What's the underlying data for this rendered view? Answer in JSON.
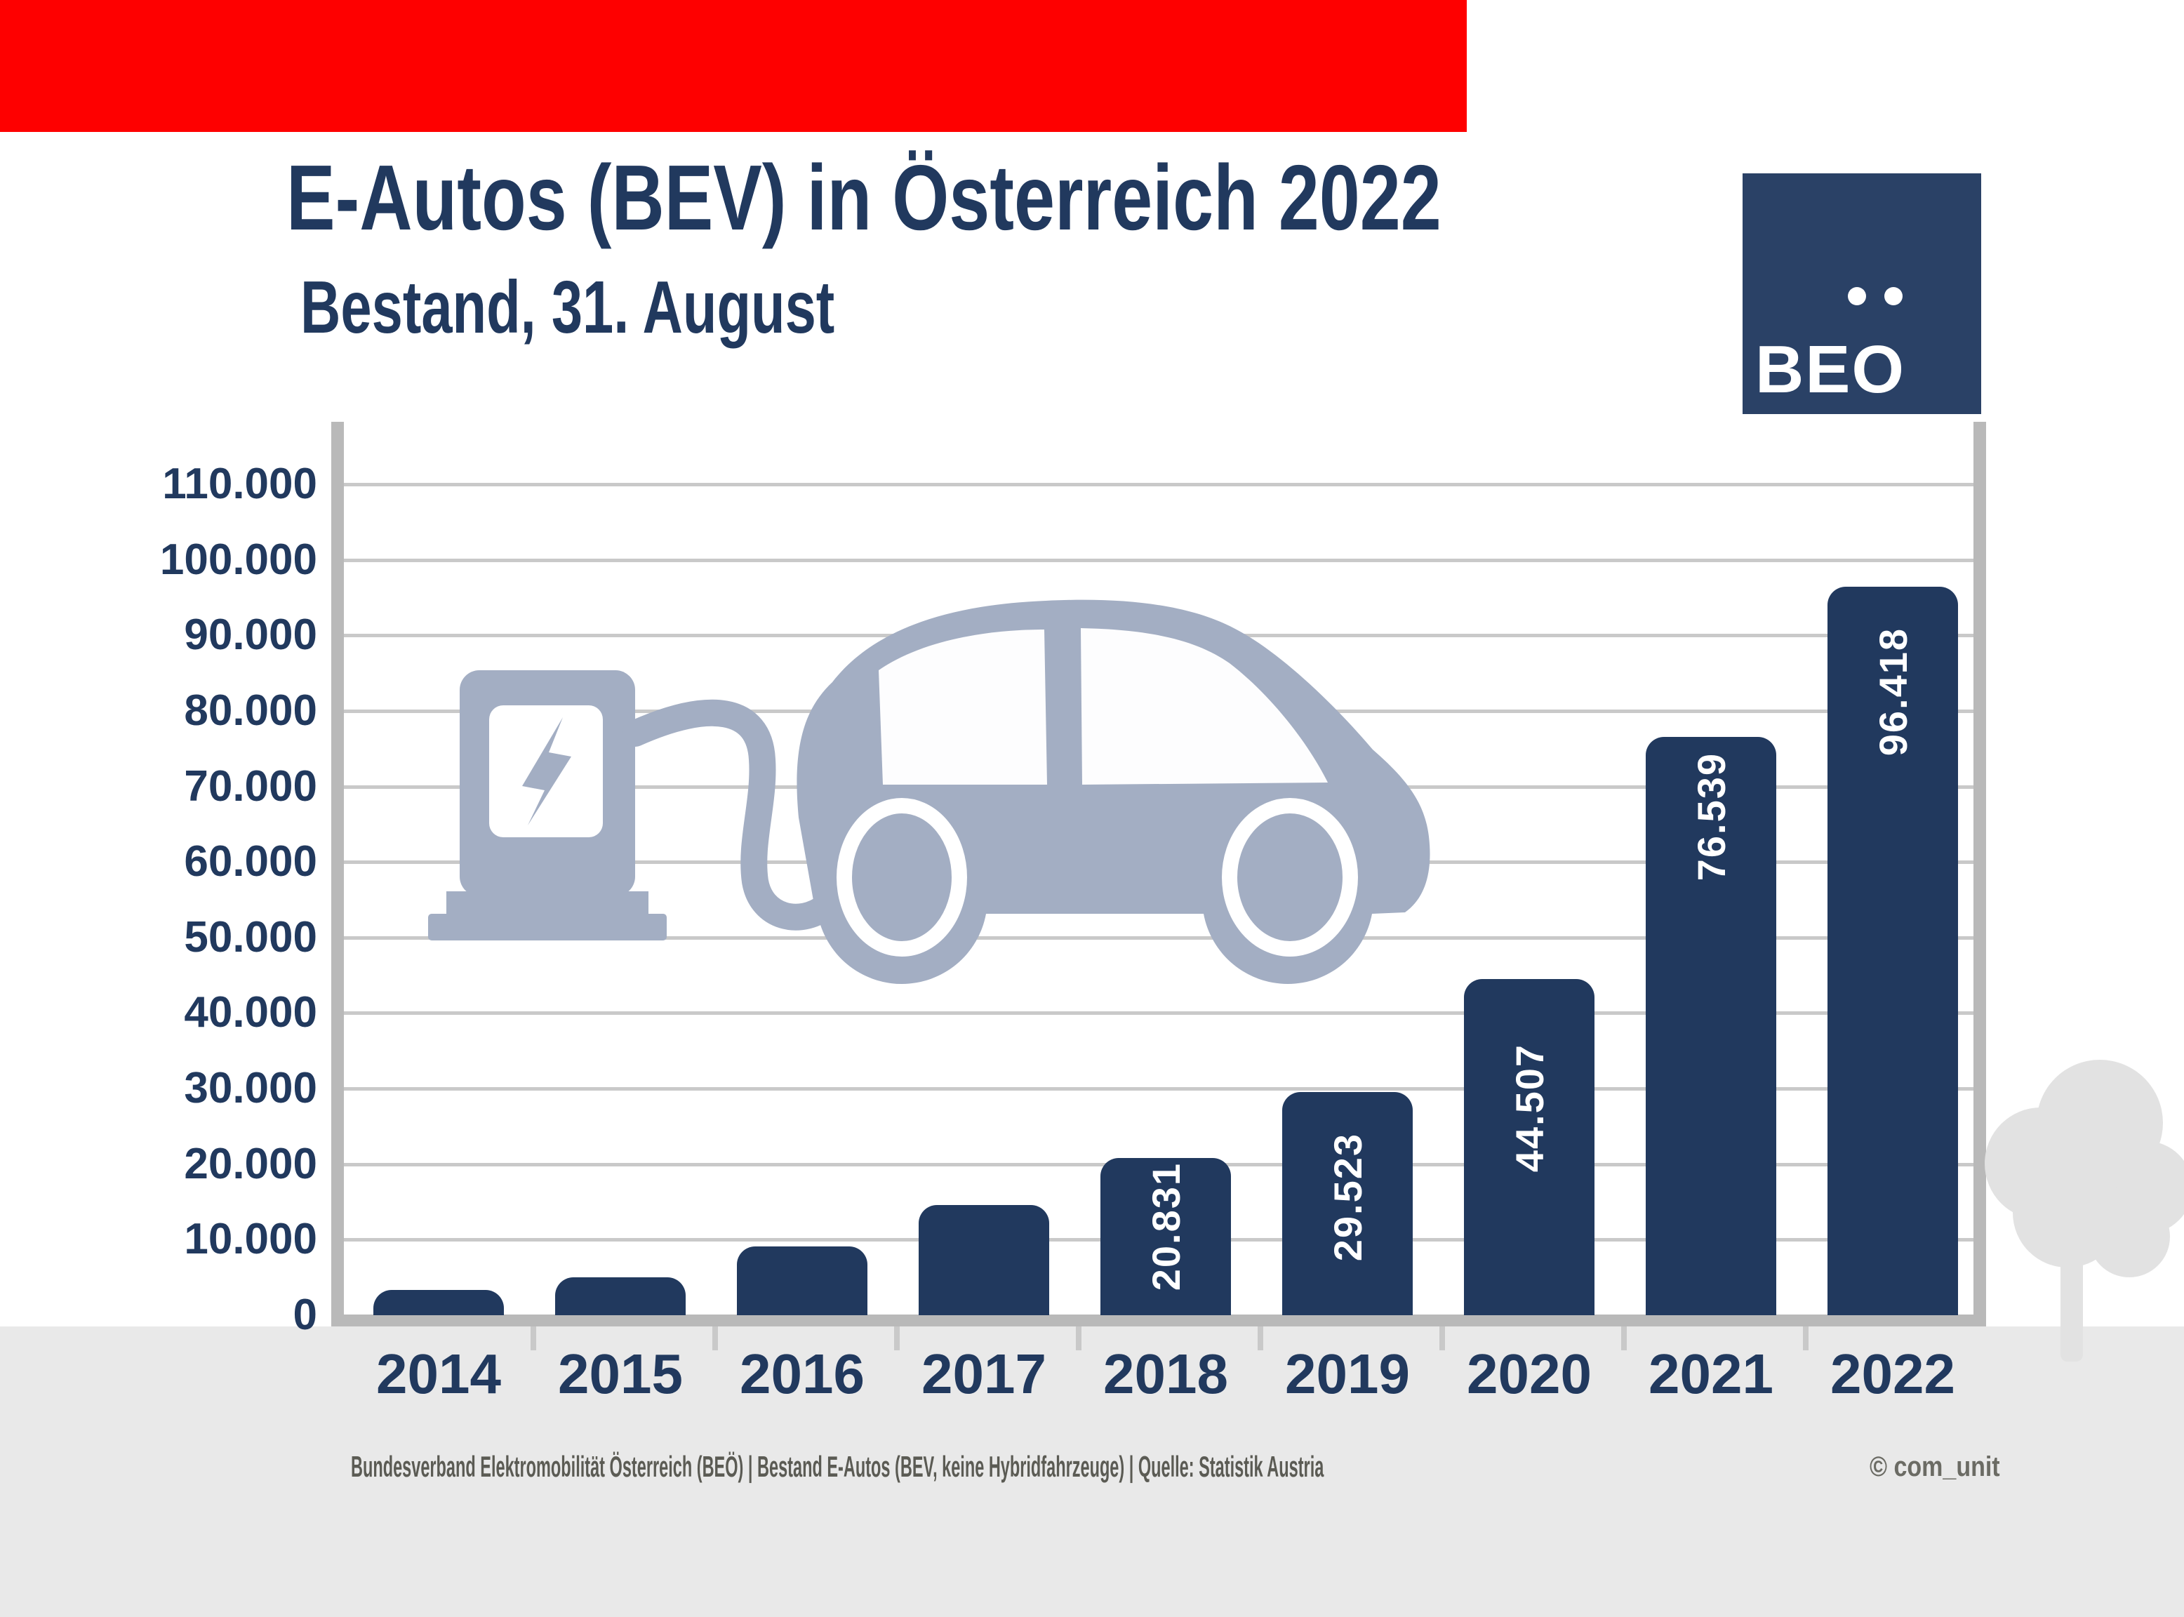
{
  "top_bar": {
    "color": "#fe0000"
  },
  "header": {
    "title": "E-Autos (BEV) in Österreich 2022",
    "subtitle": "Bestand, 31. August",
    "text_color": "#21395e"
  },
  "logo": {
    "label": "BEO",
    "background": "#2a4166",
    "dot_count": 2
  },
  "chart_data": {
    "type": "bar",
    "title": "E-Autos (BEV) in Österreich 2022",
    "subtitle": "Bestand, 31. August",
    "categories": [
      "2014",
      "2015",
      "2016",
      "2017",
      "2018",
      "2019",
      "2020",
      "2021",
      "2022"
    ],
    "values": [
      3386,
      5032,
      9073,
      14618,
      20831,
      29523,
      44507,
      76539,
      96418
    ],
    "value_labels": [
      "",
      "",
      "",
      "",
      "20.831",
      "29.523",
      "44.507",
      "76.539",
      "96.418"
    ],
    "unlabeled_bars_estimated_from_gridlines": [
      "2014",
      "2015",
      "2016",
      "2017"
    ],
    "xlabel": "",
    "ylabel": "",
    "ylim": [
      0,
      115000
    ],
    "ytick_values": [
      0,
      10000,
      20000,
      30000,
      40000,
      50000,
      60000,
      70000,
      80000,
      90000,
      100000,
      110000
    ],
    "ytick_labels": [
      "0",
      "10.000",
      "20.000",
      "30.000",
      "40.000",
      "50.000",
      "60.000",
      "70.000",
      "80.000",
      "90.000",
      "100.000",
      "110.000"
    ],
    "grid": "horizontal",
    "legend": "none",
    "bar_color": "#21395e",
    "bar_label_color": "#ffffff"
  },
  "illustrations": {
    "charging_station_and_car": "ev-charging-pictogram",
    "tree": "gray-tree-pictogram",
    "pictogram_color": "#a3aec3",
    "tree_color": "#e2e2e2"
  },
  "footer": {
    "source": "Bundesverband Elektromobilität Österreich (BEÖ) | Bestand E-Autos (BEV, keine Hybridfahrzeuge) | Quelle: Statistik Austria",
    "copyright": "© com_unit"
  },
  "colors": {
    "navy": "#21395e",
    "logo_navy": "#2a4166",
    "pictogram_slate": "#a3aec3",
    "gridline": "#c9c9c9",
    "axis_gray": "#b9b9b9",
    "footer_band": "#e9e9e9",
    "source_text": "#5b5b54",
    "top_bar_red": "#fe0000"
  }
}
